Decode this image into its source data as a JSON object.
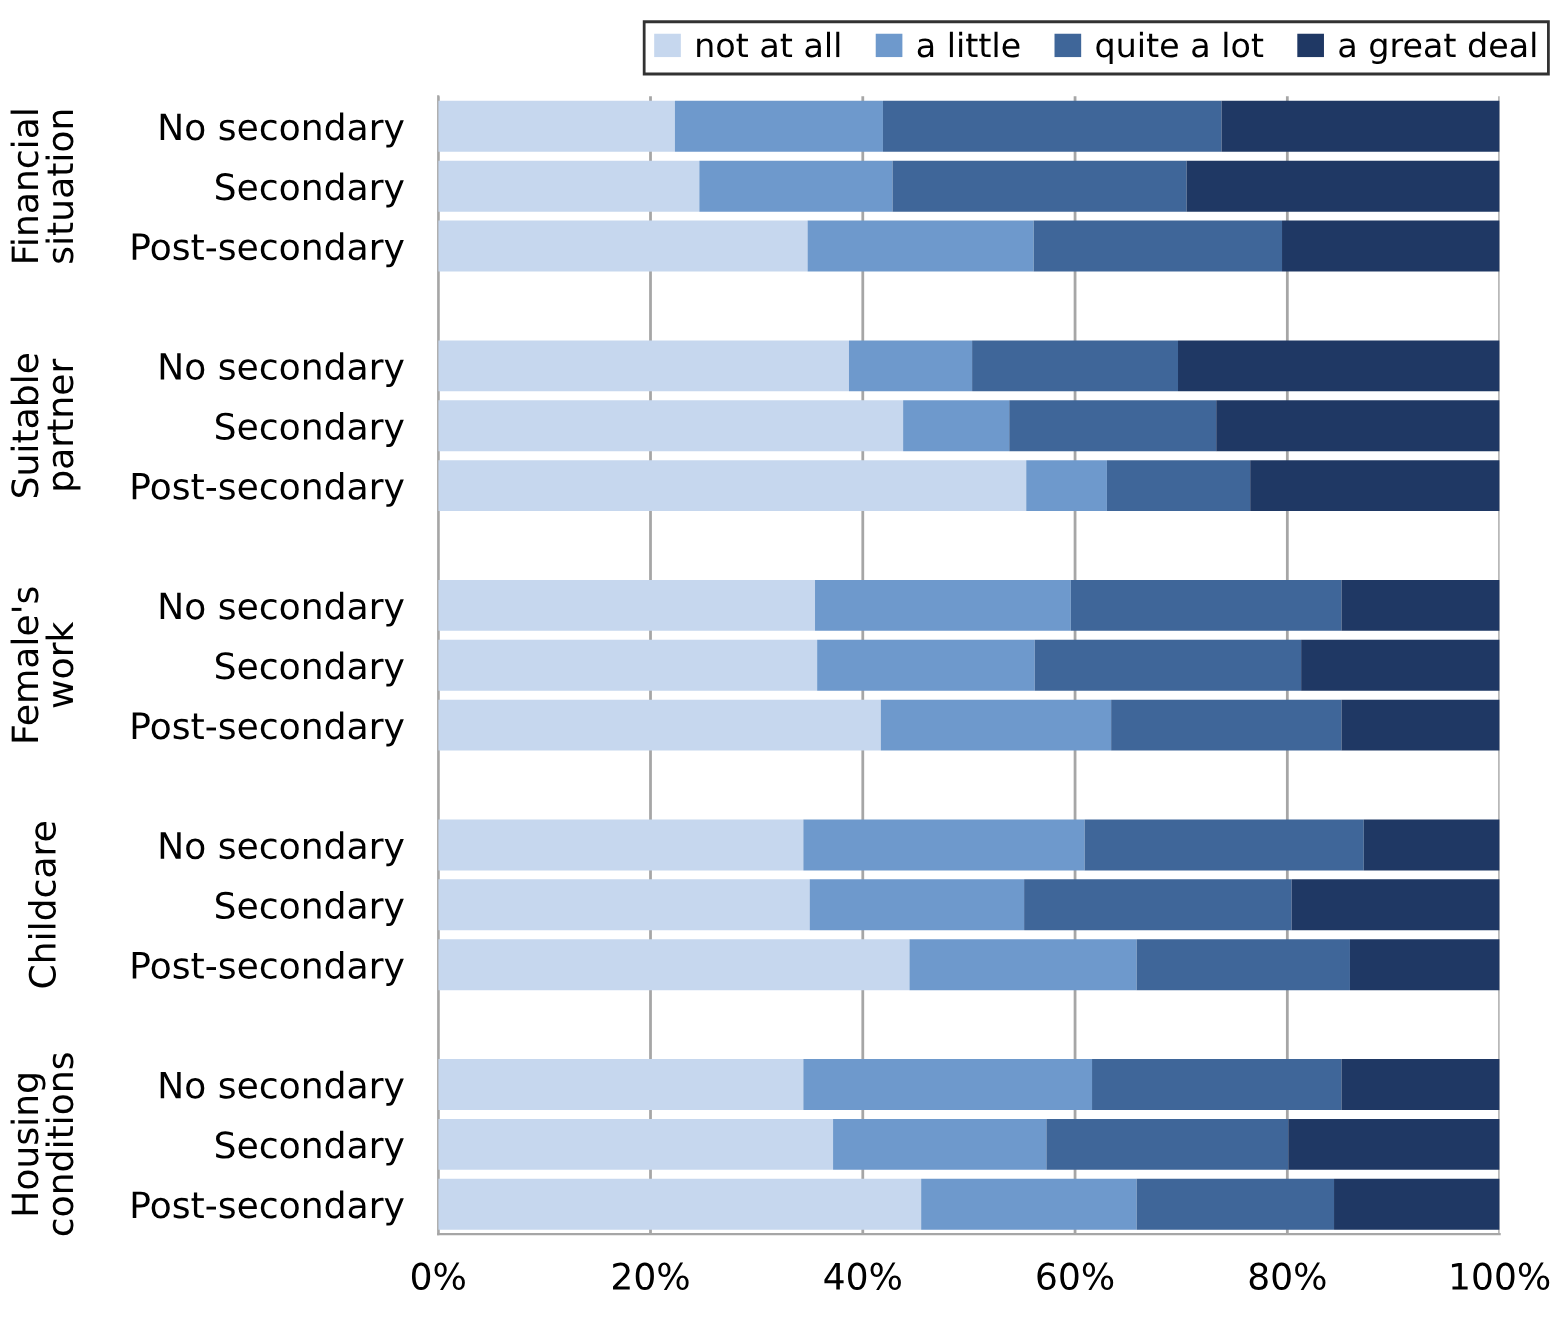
{
  "chart_data": {
    "type": "bar",
    "orientation": "horizontal",
    "stacked": true,
    "categories": [
      "No secondary",
      "Secondary",
      "Post-secondary",
      null,
      "No secondary",
      "Secondary",
      "Post-secondary",
      null,
      "No secondary",
      "Secondary",
      "Post-secondary",
      null,
      "No secondary",
      "Secondary",
      "Post-secondary",
      null,
      "No secondary",
      "Secondary",
      "Post-secondary"
    ],
    "series": [
      {
        "name": "not at all",
        "color": "#c6d7ee",
        "values": [
          22.3,
          24.6,
          34.8,
          null,
          38.7,
          43.8,
          55.4,
          null,
          35.5,
          35.7,
          41.7,
          null,
          34.4,
          35.0,
          44.4,
          null,
          34.4,
          37.2,
          45.5
        ]
      },
      {
        "name": "a little",
        "color": "#6e99cc",
        "values": [
          19.6,
          18.2,
          21.3,
          null,
          11.6,
          10.0,
          7.6,
          null,
          24.1,
          20.5,
          21.7,
          null,
          26.5,
          20.2,
          21.4,
          null,
          27.2,
          20.1,
          20.3
        ]
      },
      {
        "name": "quite a lot",
        "color": "#3f6699",
        "values": [
          31.9,
          27.7,
          23.4,
          null,
          19.4,
          19.5,
          13.5,
          null,
          25.5,
          25.1,
          21.7,
          null,
          26.3,
          25.2,
          20.1,
          null,
          23.5,
          22.8,
          18.6
        ]
      },
      {
        "name": "a great deal",
        "color": "#1f3864",
        "values": [
          26.2,
          29.5,
          20.5,
          null,
          30.3,
          26.7,
          23.5,
          null,
          14.9,
          18.7,
          14.9,
          null,
          12.8,
          19.6,
          14.1,
          null,
          14.9,
          19.9,
          15.6
        ]
      }
    ],
    "annotations": [
      "Financial\nsituation",
      "Suitable\npartner",
      "Female's\nwork",
      "Childcare",
      "Housing\nconditions"
    ],
    "xlim": [
      0,
      100
    ],
    "xticks": [
      {
        "value": 0,
        "label": "0%"
      },
      {
        "value": 20,
        "label": "20%"
      },
      {
        "value": 40,
        "label": "40%"
      },
      {
        "value": 60,
        "label": "60%"
      },
      {
        "value": 80,
        "label": "80%"
      },
      {
        "value": 100,
        "label": "100%"
      }
    ],
    "grid": "x",
    "legend": "top"
  }
}
